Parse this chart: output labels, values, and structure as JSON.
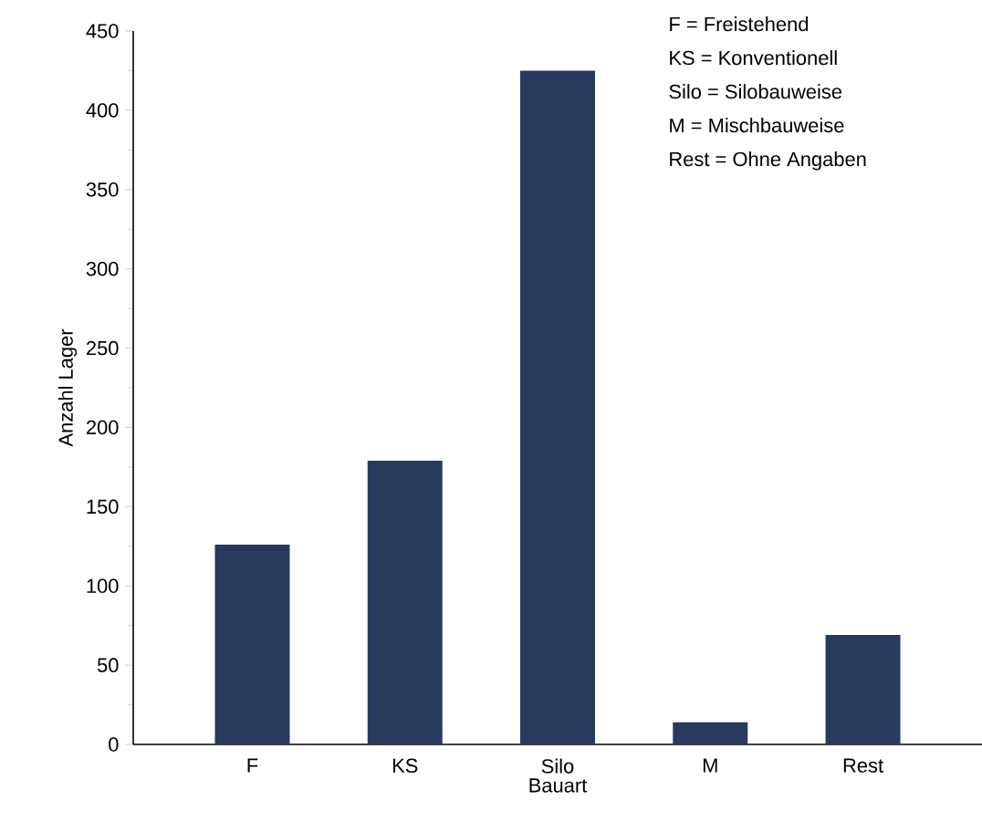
{
  "chart_data": {
    "type": "bar",
    "categories": [
      "F",
      "KS",
      "Silo",
      "M",
      "Rest"
    ],
    "values": [
      126,
      179,
      425,
      14,
      69
    ],
    "color": "#283a5e",
    "xlabel": "Bauart",
    "ylabel": "Anzahl Lager",
    "ylim": [
      0,
      450
    ],
    "yticks": [
      0,
      50,
      100,
      150,
      200,
      250,
      300,
      350,
      400,
      450
    ],
    "annotations": [
      "F = Freistehend",
      "KS = Konventionell",
      "Silo = Silobauweise",
      "M = Mischbauweise",
      "Rest = Ohne Angaben"
    ]
  }
}
